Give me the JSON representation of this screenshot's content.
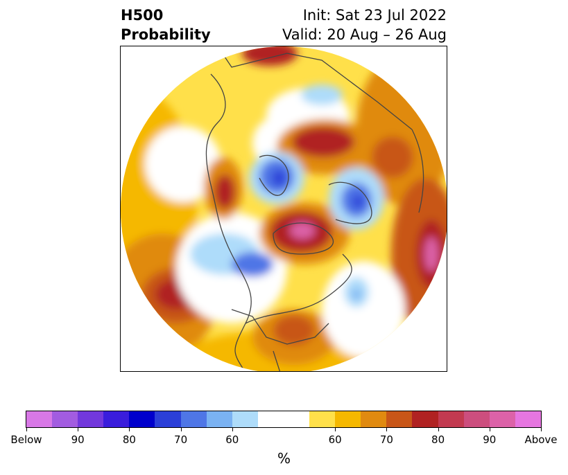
{
  "title": {
    "left_line1": "H500",
    "left_line2": "Probability",
    "right_line1": "Init: Sat 23 Jul 2022",
    "right_line2": "Valid: 20 Aug – 26 Aug"
  },
  "colorbar": {
    "unit": "%",
    "colors": [
      "#d878e6",
      "#a25ce0",
      "#7238dc",
      "#3a1ddc",
      "#0000cc",
      "#2b3fd8",
      "#4f76e6",
      "#7ab2f2",
      "#aedcfa",
      "#ffffff",
      "#ffffff",
      "#ffe04a",
      "#f5b800",
      "#e08a10",
      "#c85618",
      "#b02222",
      "#c23a50",
      "#cc4e7e",
      "#dc62a8",
      "#e676e0"
    ],
    "tick_labels": [
      "Below",
      "90",
      "80",
      "70",
      "60",
      "60",
      "70",
      "80",
      "90",
      "Above"
    ]
  },
  "map": {
    "projection": "north polar stereographic",
    "field": "H500 probability"
  }
}
